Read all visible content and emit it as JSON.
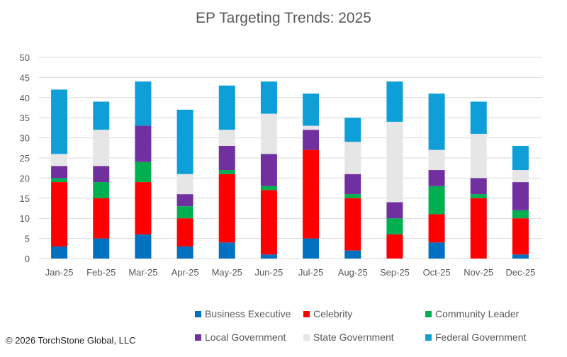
{
  "chart_data": {
    "type": "bar",
    "stacked": true,
    "title": "EP Targeting Trends: 2025",
    "xlabel": "",
    "ylabel": "",
    "ylim": [
      0,
      50
    ],
    "yticks": [
      0,
      5,
      10,
      15,
      20,
      25,
      30,
      35,
      40,
      45,
      50
    ],
    "grid": true,
    "legend_position": "bottom",
    "categories": [
      "Jan-25",
      "Feb-25",
      "Mar-25",
      "Apr-25",
      "May-25",
      "Jun-25",
      "Jul-25",
      "Aug-25",
      "Sep-25",
      "Oct-25",
      "Nov-25",
      "Dec-25"
    ],
    "series": [
      {
        "name": "Business Executive",
        "color": "#0070C0",
        "values": [
          3,
          5,
          6,
          3,
          4,
          1,
          5,
          2,
          0,
          4,
          0,
          1
        ]
      },
      {
        "name": "Celebrity",
        "color": "#FF0000",
        "values": [
          16,
          10,
          13,
          7,
          17,
          16,
          22,
          13,
          6,
          7,
          15,
          9
        ]
      },
      {
        "name": "Community Leader",
        "color": "#00B050",
        "values": [
          1,
          4,
          5,
          3,
          1,
          1,
          0,
          1,
          4,
          7,
          1,
          2
        ]
      },
      {
        "name": "Local Government",
        "color": "#7030A0",
        "values": [
          3,
          4,
          9,
          3,
          6,
          8,
          5,
          5,
          4,
          4,
          4,
          7
        ]
      },
      {
        "name": "State Government",
        "color": "#E7E6E6",
        "values": [
          3,
          9,
          0,
          5,
          4,
          10,
          1,
          8,
          20,
          5,
          11,
          3
        ]
      },
      {
        "name": "Federal Government",
        "color": "#0E9FD8",
        "values": [
          16,
          7,
          11,
          16,
          11,
          8,
          8,
          6,
          10,
          14,
          8,
          6
        ]
      }
    ]
  },
  "footer": {
    "copyright": "© 2026 TorchStone Global, LLC"
  }
}
